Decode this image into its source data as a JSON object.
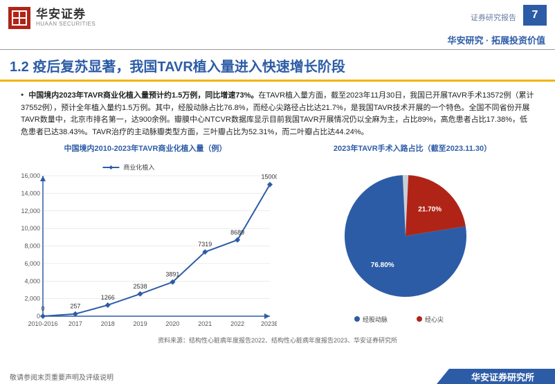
{
  "header": {
    "logo_cn": "华安证券",
    "logo_en": "HUAAN SECURITIES",
    "report_label": "证券研究报告",
    "page_num": "7",
    "sub": "华安研究 · 拓展投资价值"
  },
  "title": "1.2 疫后复苏显著，我国TAVR植入量进入快速增长阶段",
  "body": {
    "lead": "中国境内2023年TAVR商业化植入量预计约1.5万例，同比增速73%。",
    "rest": "在TAVR植入量方面，截至2023年11月30日，我国已开展TAVR手术13572例（累计37552例），预计全年植入量约1.5万例。其中，经股动脉占比76.8%，而经心尖路径占比达21.7%，是我国TAVR技术开展的一个特色。全国不同省份开展TAVR数量中，北京市排名第一，达900余例。瓣膜中心NTCVR数据库显示目前我国TAVR开展情况仍以全麻为主，占比89%，高危患者占比17.38%，低危患者已达38.43%。TAVR治疗的主动脉瓣类型方面，三叶瓣占比为52.31%，而二叶瓣占比达44.24%。"
  },
  "line_chart": {
    "title": "中国境内2010-2023年TAVR商业化植入量（例）",
    "type": "line",
    "series_name": "商业化植入",
    "categories": [
      "2010-2016",
      "2017",
      "2018",
      "2019",
      "2020",
      "2021",
      "2022",
      "2023E"
    ],
    "values": [
      0,
      257,
      1266,
      2538,
      3891,
      7319,
      8689,
      15000
    ],
    "ylim": [
      0,
      16000
    ],
    "ytick_step": 2000,
    "line_color": "#2d5ca6",
    "marker_color": "#2d5ca6",
    "axis_color": "#2d5ca6",
    "grid_color": "#d8d8d8",
    "background": "#ffffff",
    "label_fontsize": 9
  },
  "pie_chart": {
    "title": "2023年TAVR手术入路占比（截至2023.11.30）",
    "type": "pie",
    "slices": [
      {
        "label": "经股动脉",
        "value": 76.8,
        "color": "#2d5ca6",
        "display": "76.80%"
      },
      {
        "label": "经心尖",
        "value": 21.7,
        "color": "#b02418",
        "display": "21.70%"
      }
    ],
    "other_value": 1.5,
    "background": "#ffffff",
    "legend_marker": "circle"
  },
  "source": "资料来源：结构性心脏病年度报告2022、结构性心脏病年度报告2023、华安证券研究所",
  "footer": {
    "left": "敬请参阅末页重要声明及评级说明",
    "right": "华安证券研究所"
  }
}
